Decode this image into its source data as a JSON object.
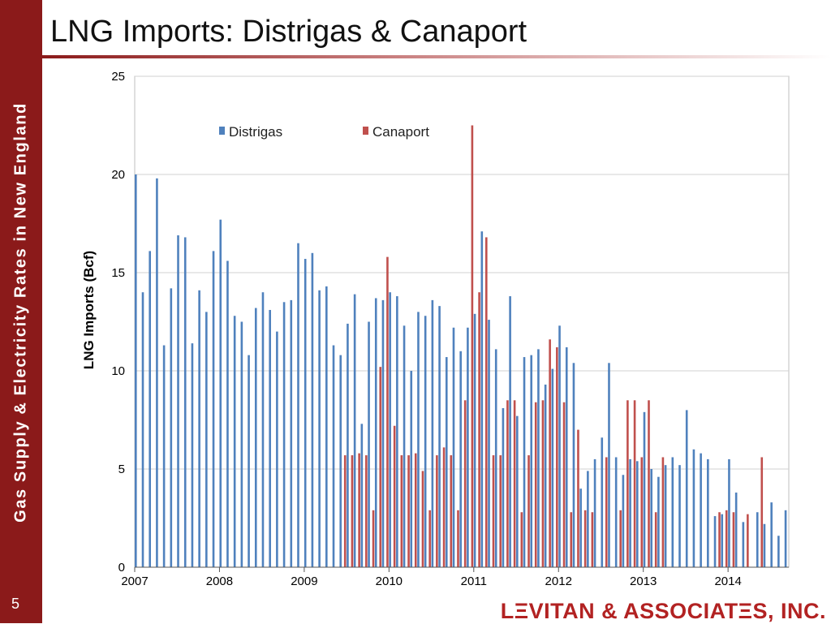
{
  "sidebar": {
    "text": "Gas Supply & Electricity Rates in New England",
    "page_number": "5"
  },
  "slide": {
    "title": "LNG Imports: Distrigas & Canaport"
  },
  "logo": {
    "text": "LΞVITAN & ASSOCIATΞS, INC."
  },
  "colors": {
    "sidebar": "#8b1a1a",
    "distrigas": "#4f81bd",
    "canaport": "#c0504d",
    "grid": "#d0d0d0"
  },
  "chart_data": {
    "type": "bar",
    "ylabel": "LNG Imports (Bcf)",
    "ylim": [
      0,
      25
    ],
    "yticks": [
      0,
      5,
      10,
      15,
      20,
      25
    ],
    "xticks": [
      "2007",
      "2008",
      "2009",
      "2010",
      "2011",
      "2012",
      "2013",
      "2014"
    ],
    "legend_position": "top-left",
    "grid": true,
    "start": "2007-01",
    "series": [
      {
        "name": "Distrigas",
        "values": [
          20.0,
          14.0,
          16.1,
          19.8,
          11.3,
          14.2,
          16.9,
          16.8,
          11.4,
          14.1,
          13.0,
          16.1,
          17.7,
          15.6,
          12.8,
          12.5,
          10.8,
          13.2,
          14.0,
          13.1,
          12.0,
          13.5,
          13.6,
          16.5,
          15.7,
          16.0,
          14.1,
          14.3,
          11.3,
          10.8,
          12.4,
          13.9,
          7.3,
          12.5,
          13.7,
          13.6,
          14.0,
          13.8,
          12.3,
          10.0,
          13.0,
          12.8,
          13.6,
          13.3,
          10.7,
          12.2,
          11.0,
          12.2,
          12.9,
          17.1,
          12.6,
          11.1,
          8.1,
          13.8,
          7.7,
          10.7,
          10.8,
          11.1,
          9.3,
          10.1,
          12.3,
          11.2,
          10.4,
          4.0,
          4.9,
          5.5,
          6.6,
          10.4,
          5.6,
          4.7,
          5.5,
          5.4,
          7.9,
          5.0,
          4.6,
          5.2,
          5.6,
          5.2,
          8.0,
          6.0,
          5.8,
          5.5,
          2.6,
          2.7,
          5.5,
          3.8,
          2.3,
          0,
          2.8,
          2.2,
          3.3,
          1.6,
          2.9
        ]
      },
      {
        "name": "Canaport",
        "values": [
          0,
          0,
          0,
          0,
          0,
          0,
          0,
          0,
          0,
          0,
          0,
          0,
          0,
          0,
          0,
          0,
          0,
          0,
          0,
          0,
          0,
          0,
          0,
          0,
          0,
          0,
          0,
          0,
          0,
          0,
          5.7,
          5.7,
          5.8,
          5.7,
          2.9,
          10.2,
          15.8,
          7.2,
          5.7,
          5.7,
          5.8,
          4.9,
          2.9,
          5.7,
          6.1,
          5.7,
          2.9,
          8.5,
          22.5,
          14.0,
          16.8,
          5.7,
          5.7,
          8.5,
          8.5,
          2.8,
          5.7,
          8.4,
          8.5,
          11.6,
          11.2,
          8.4,
          2.8,
          7.0,
          2.9,
          2.8,
          0,
          5.6,
          0,
          2.9,
          8.5,
          8.5,
          5.6,
          8.5,
          2.8,
          5.6,
          0,
          0,
          0,
          0,
          0,
          0,
          0,
          2.8,
          2.9,
          2.8,
          0,
          2.7,
          0,
          5.6,
          0,
          0,
          0
        ]
      }
    ]
  }
}
